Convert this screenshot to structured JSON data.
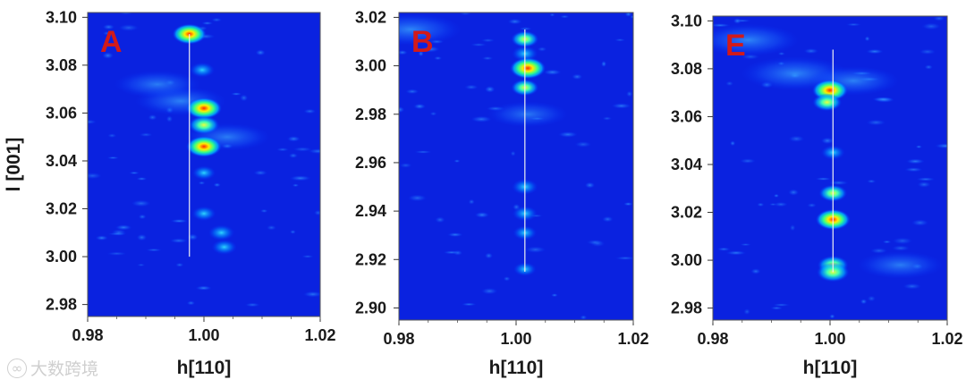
{
  "watermark": {
    "text": "大数跨境"
  },
  "chart_data": [
    {
      "type": "heatmap",
      "panel_label": "A",
      "xlabel": "h[110]",
      "ylabel": "l [001]",
      "xlim": [
        0.98,
        1.02
      ],
      "ylim": [
        2.975,
        3.102
      ],
      "x_ticks": [
        "0.98",
        "1.00",
        "1.02"
      ],
      "y_ticks": [
        "3.10",
        "3.08",
        "3.06",
        "3.04",
        "3.02",
        "3.00",
        "2.98"
      ],
      "guide_line": {
        "h": 0.9975,
        "l_range": [
          3.0,
          3.093
        ]
      },
      "peaks": [
        {
          "h": 0.9975,
          "l": 3.093,
          "intensity": 0.92
        },
        {
          "h": 0.9997,
          "l": 3.078,
          "intensity": 0.5
        },
        {
          "h": 1.0,
          "l": 3.062,
          "intensity": 1.0
        },
        {
          "h": 1.0,
          "l": 3.055,
          "intensity": 0.78
        },
        {
          "h": 1.0,
          "l": 3.046,
          "intensity": 0.98
        },
        {
          "h": 1.0,
          "l": 3.035,
          "intensity": 0.42
        },
        {
          "h": 1.0,
          "l": 3.018,
          "intensity": 0.45
        },
        {
          "h": 1.003,
          "l": 3.01,
          "intensity": 0.55
        },
        {
          "h": 1.0035,
          "l": 3.004,
          "intensity": 0.5
        }
      ],
      "diffuse": [
        {
          "h": 0.996,
          "l": 3.065,
          "intensity": 0.35
        },
        {
          "h": 1.004,
          "l": 3.05,
          "intensity": 0.3
        },
        {
          "h": 0.992,
          "l": 3.072,
          "intensity": 0.3
        }
      ]
    },
    {
      "type": "heatmap",
      "panel_label": "B",
      "xlabel": "h[110]",
      "ylabel": "",
      "xlim": [
        0.98,
        1.02
      ],
      "ylim": [
        2.895,
        3.022
      ],
      "x_ticks": [
        "0.98",
        "1.00",
        "1.02"
      ],
      "y_ticks": [
        "3.02",
        "3.00",
        "2.98",
        "2.96",
        "2.94",
        "2.92",
        "2.90"
      ],
      "guide_line": {
        "h": 1.0015,
        "l_range": [
          2.915,
          3.015
        ]
      },
      "peaks": [
        {
          "h": 1.0015,
          "l": 3.011,
          "intensity": 0.62
        },
        {
          "h": 1.0015,
          "l": 3.005,
          "intensity": 0.55
        },
        {
          "h": 1.002,
          "l": 2.999,
          "intensity": 1.0
        },
        {
          "h": 1.0015,
          "l": 2.991,
          "intensity": 0.62
        },
        {
          "h": 1.0015,
          "l": 2.95,
          "intensity": 0.55
        },
        {
          "h": 1.0015,
          "l": 2.939,
          "intensity": 0.5
        },
        {
          "h": 1.0015,
          "l": 2.931,
          "intensity": 0.45
        },
        {
          "h": 1.0015,
          "l": 2.916,
          "intensity": 0.4
        }
      ],
      "diffuse": [
        {
          "h": 0.982,
          "l": 3.015,
          "intensity": 0.45
        },
        {
          "h": 1.002,
          "l": 2.98,
          "intensity": 0.25
        }
      ]
    },
    {
      "type": "heatmap",
      "panel_label": "E",
      "xlabel": "h[110]",
      "ylabel": "",
      "xlim": [
        0.98,
        1.02
      ],
      "ylim": [
        2.975,
        3.102
      ],
      "x_ticks": [
        "0.98",
        "1.00",
        "1.02"
      ],
      "y_ticks": [
        "3.10",
        "3.08",
        "3.06",
        "3.04",
        "3.02",
        "3.00",
        "2.98"
      ],
      "guide_line": {
        "h": 1.0005,
        "l_range": [
          2.995,
          3.088
        ]
      },
      "peaks": [
        {
          "h": 1.0,
          "l": 3.071,
          "intensity": 1.0
        },
        {
          "h": 0.9995,
          "l": 3.066,
          "intensity": 0.7
        },
        {
          "h": 1.0005,
          "l": 3.045,
          "intensity": 0.45
        },
        {
          "h": 1.0005,
          "l": 3.028,
          "intensity": 0.65
        },
        {
          "h": 1.0005,
          "l": 3.017,
          "intensity": 0.95
        },
        {
          "h": 1.0005,
          "l": 2.998,
          "intensity": 0.78
        },
        {
          "h": 1.0005,
          "l": 2.995,
          "intensity": 0.85
        }
      ],
      "diffuse": [
        {
          "h": 0.986,
          "l": 3.092,
          "intensity": 0.45
        },
        {
          "h": 0.994,
          "l": 3.078,
          "intensity": 0.5
        },
        {
          "h": 1.004,
          "l": 3.075,
          "intensity": 0.35
        },
        {
          "h": 1.012,
          "l": 2.998,
          "intensity": 0.3
        }
      ]
    }
  ]
}
